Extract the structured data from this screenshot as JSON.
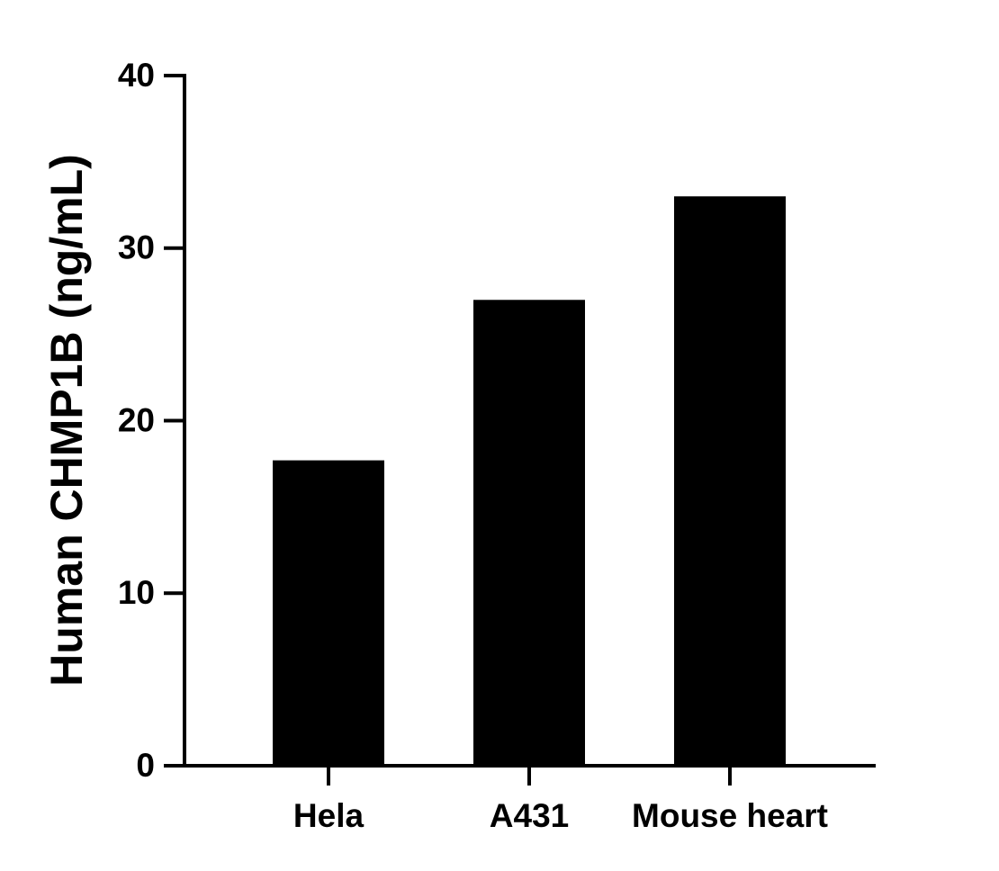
{
  "chart_data": {
    "type": "bar",
    "y_label": "Human CHMP1B (ng/mL)",
    "categories": [
      "Hela",
      "A431",
      "Mouse heart"
    ],
    "values": [
      17.7,
      27,
      33
    ],
    "color": "#000000",
    "ylim": [
      0,
      40
    ],
    "yticks": [
      0,
      10,
      20,
      30,
      40
    ],
    "grid": false
  }
}
